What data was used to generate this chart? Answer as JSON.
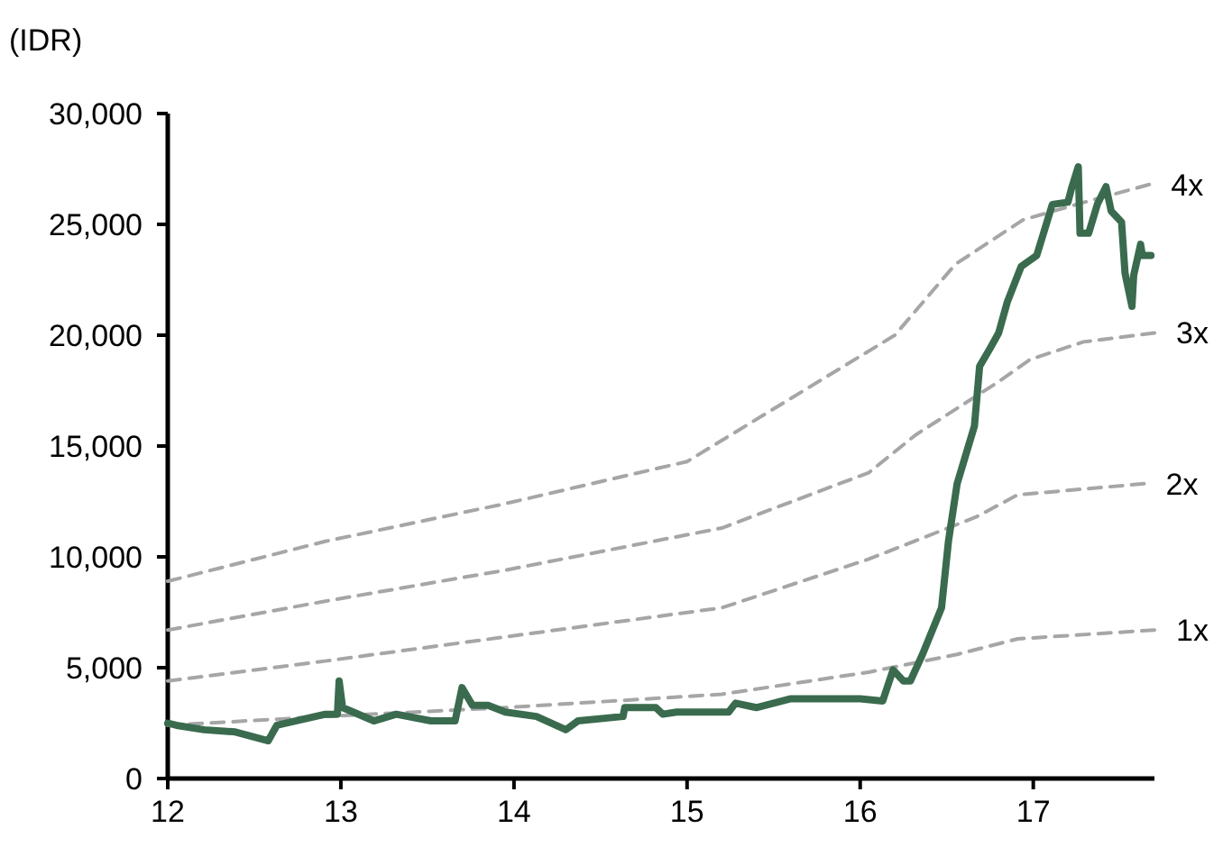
{
  "chart_data": {
    "type": "line",
    "ylabel": "(IDR)",
    "xlim": [
      12,
      17.7
    ],
    "xticks": [
      12,
      13,
      14,
      15,
      16,
      17
    ],
    "ylim": [
      0,
      30000
    ],
    "yticks": [
      {
        "value": 0,
        "label": "0"
      },
      {
        "value": 5000,
        "label": "5,000"
      },
      {
        "value": 10000,
        "label": "10,000"
      },
      {
        "value": 15000,
        "label": "15,000"
      },
      {
        "value": 20000,
        "label": "20,000"
      },
      {
        "value": 25000,
        "label": "25,000"
      },
      {
        "value": 30000,
        "label": "30,000"
      }
    ],
    "grid": false,
    "legend": false,
    "marker": "none",
    "series": [
      {
        "name": "4x",
        "color": "#a6a6a6",
        "line_style": "dashed",
        "x": [
          12.0,
          12.91,
          13.95,
          15.0,
          16.2,
          16.55,
          16.94,
          17.25,
          17.67
        ],
        "values": [
          8900,
          10700,
          12400,
          14300,
          20000,
          23200,
          25200,
          25900,
          26800
        ]
      },
      {
        "name": "3x",
        "color": "#a6a6a6",
        "line_style": "dashed",
        "x": [
          12.0,
          12.91,
          13.95,
          15.2,
          16.05,
          16.32,
          16.8,
          16.98,
          17.29,
          17.7
        ],
        "values": [
          6700,
          8000,
          9400,
          11300,
          13800,
          15500,
          17900,
          18900,
          19700,
          20100
        ]
      },
      {
        "name": "2x",
        "color": "#a6a6a6",
        "line_style": "dashed",
        "x": [
          12.0,
          12.91,
          15.2,
          16.05,
          16.67,
          16.91,
          17.64
        ],
        "values": [
          4400,
          5300,
          7700,
          9900,
          11800,
          12800,
          13300
        ]
      },
      {
        "name": "1x",
        "color": "#a6a6a6",
        "line_style": "dashed",
        "x": [
          12.0,
          12.91,
          13.95,
          15.2,
          16.05,
          16.56,
          16.91,
          17.7
        ],
        "values": [
          2400,
          2800,
          3200,
          3800,
          4800,
          5600,
          6300,
          6700
        ]
      },
      {
        "color": "#3a6b4e",
        "line_style": "solid",
        "x": [
          12.0,
          12.05,
          12.21,
          12.39,
          12.58,
          12.63,
          12.91,
          12.98,
          12.99,
          13.01,
          13.19,
          13.32,
          13.52,
          13.66,
          13.7,
          13.76,
          13.85,
          13.95,
          14.13,
          14.3,
          14.37,
          14.63,
          14.64,
          14.82,
          14.86,
          14.94,
          15.24,
          15.28,
          15.4,
          15.6,
          15.7,
          16.0,
          16.13,
          16.19,
          16.25,
          16.29,
          16.36,
          16.47,
          16.51,
          16.56,
          16.66,
          16.69,
          16.75,
          16.8,
          16.85,
          16.93,
          17.02,
          17.11,
          17.2,
          17.22,
          17.26,
          17.27,
          17.32,
          17.37,
          17.42,
          17.45,
          17.51,
          17.53,
          17.57,
          17.58,
          17.62,
          17.63,
          17.64,
          17.68
        ],
        "values": [
          2500,
          2400,
          2200,
          2100,
          1700,
          2400,
          2900,
          2900,
          4400,
          3200,
          2600,
          2900,
          2600,
          2600,
          4100,
          3300,
          3300,
          3000,
          2800,
          2200,
          2600,
          2800,
          3200,
          3200,
          2900,
          3000,
          3000,
          3400,
          3200,
          3600,
          3600,
          3600,
          3500,
          4900,
          4400,
          4400,
          5600,
          7700,
          10700,
          13300,
          15900,
          18600,
          19400,
          20100,
          21500,
          23100,
          23600,
          25900,
          26000,
          26600,
          27600,
          24600,
          24600,
          25900,
          26700,
          25600,
          25100,
          22800,
          21300,
          22700,
          24100,
          23600,
          23600,
          23600
        ]
      }
    ]
  }
}
